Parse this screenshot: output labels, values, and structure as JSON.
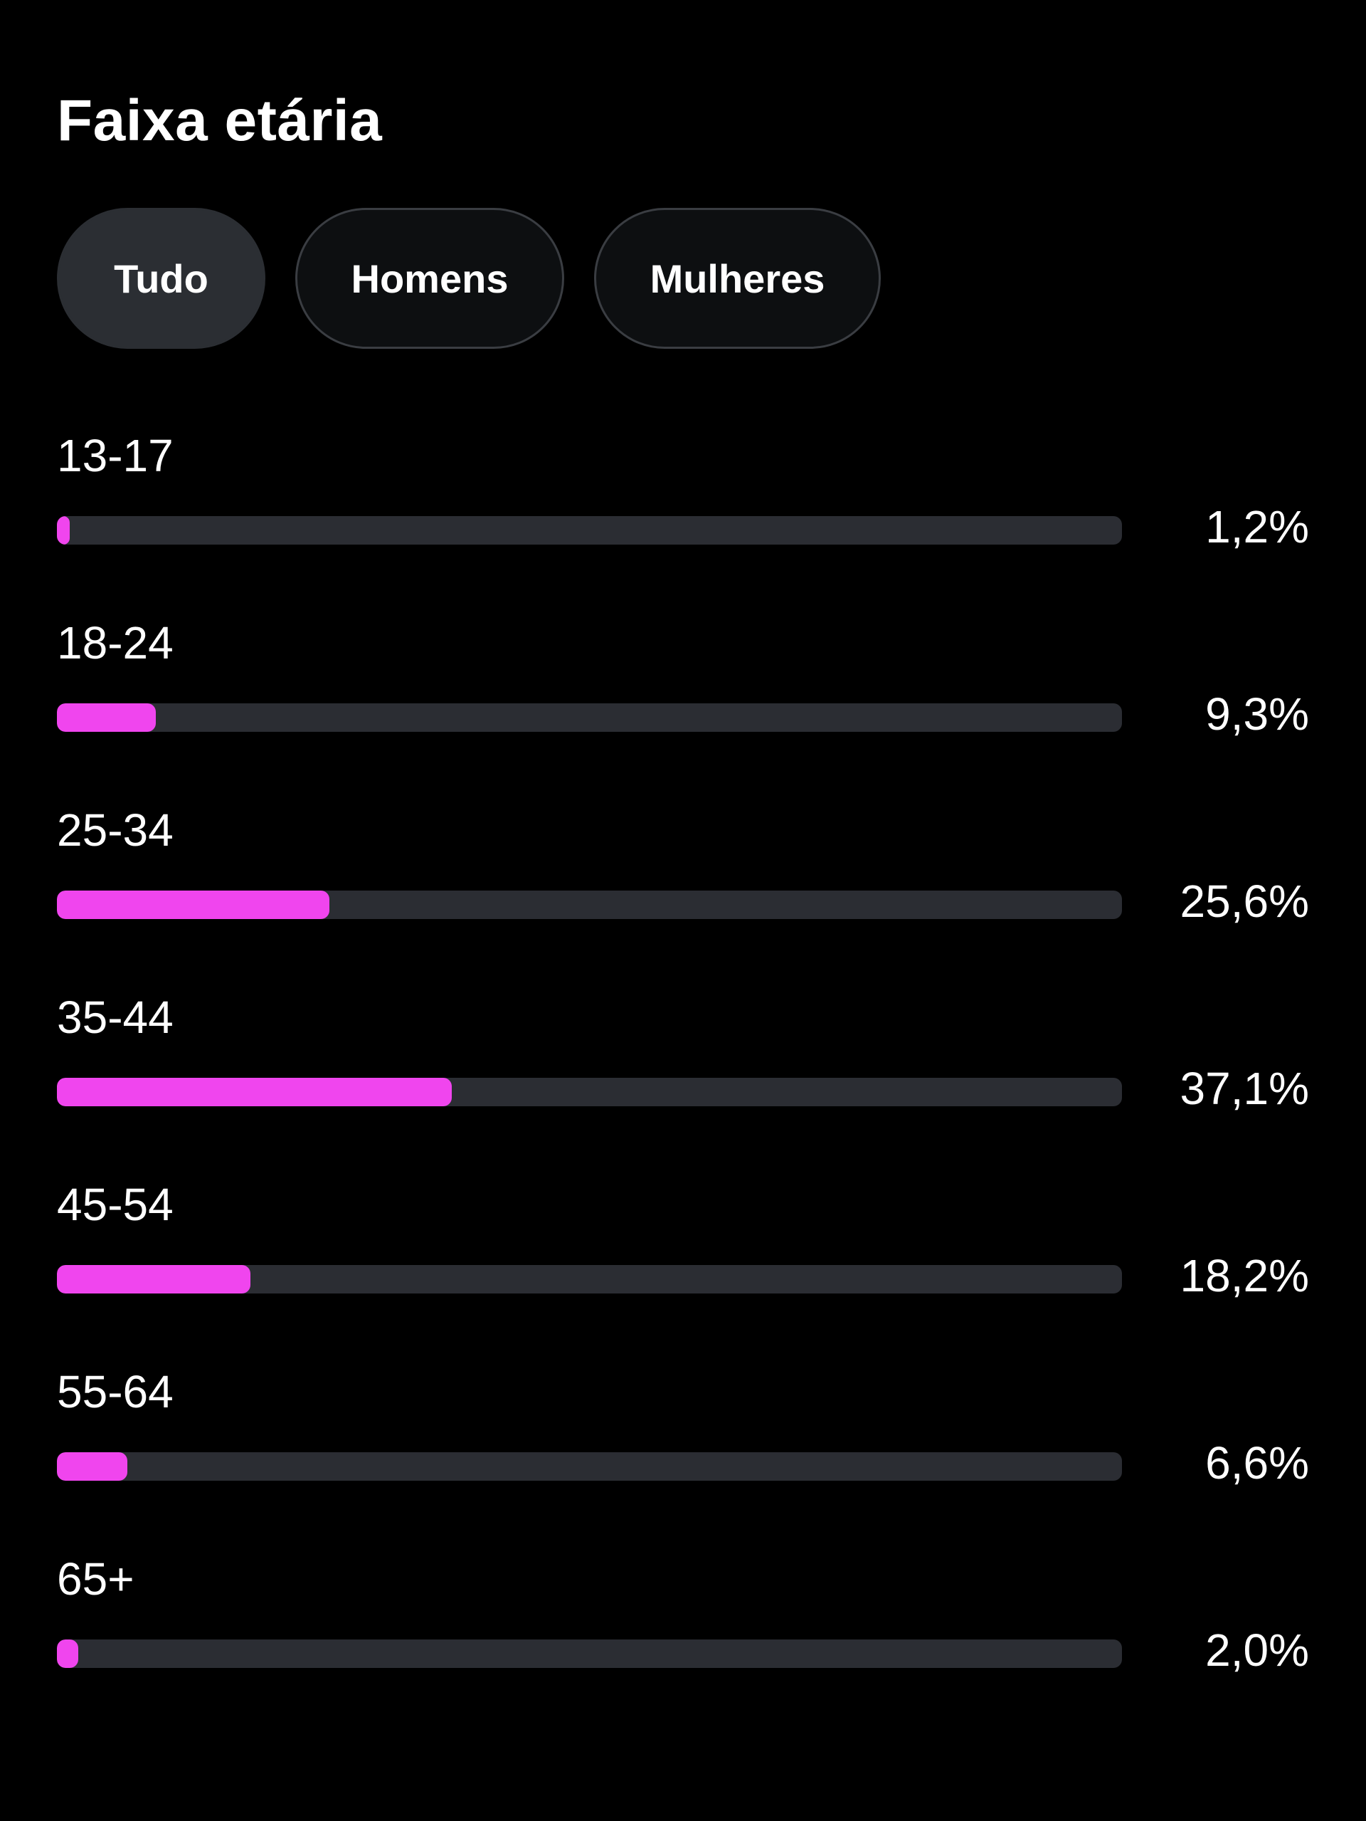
{
  "header": {
    "title": "Faixa etária"
  },
  "tabs": [
    {
      "label": "Tudo",
      "selected": true
    },
    {
      "label": "Homens",
      "selected": false
    },
    {
      "label": "Mulheres",
      "selected": false
    }
  ],
  "colors": {
    "bar_fill": "#f045ee",
    "bar_track": "#2b2d33",
    "background": "#000000",
    "selected_tab": "#2b2e33"
  },
  "chart_data": {
    "type": "bar",
    "categories": [
      "13-17",
      "18-24",
      "25-34",
      "35-44",
      "45-54",
      "55-64",
      "65+"
    ],
    "labels": [
      "1,2%",
      "9,3%",
      "25,6%",
      "37,1%",
      "18,2%",
      "6,6%",
      "2,0%"
    ],
    "values": [
      1.2,
      9.3,
      25.6,
      37.1,
      18.2,
      6.6,
      2.0
    ],
    "xlim": [
      0,
      100
    ]
  }
}
